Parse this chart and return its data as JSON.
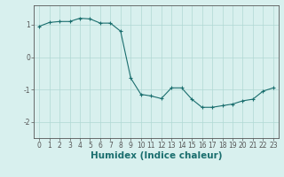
{
  "x": [
    0,
    1,
    2,
    3,
    4,
    5,
    6,
    7,
    8,
    9,
    10,
    11,
    12,
    13,
    14,
    15,
    16,
    17,
    18,
    19,
    20,
    21,
    22,
    23
  ],
  "y": [
    0.95,
    1.07,
    1.1,
    1.1,
    1.2,
    1.18,
    1.05,
    1.05,
    0.8,
    -0.65,
    -1.15,
    -1.2,
    -1.28,
    -0.95,
    -0.95,
    -1.3,
    -1.55,
    -1.55,
    -1.5,
    -1.45,
    -1.35,
    -1.3,
    -1.05,
    -0.95
  ],
  "xlabel": "Humidex (Indice chaleur)",
  "ylim": [
    -2.5,
    1.6
  ],
  "xlim": [
    -0.5,
    23.5
  ],
  "yticks": [
    -2,
    -1,
    0,
    1
  ],
  "xticks": [
    0,
    1,
    2,
    3,
    4,
    5,
    6,
    7,
    8,
    9,
    10,
    11,
    12,
    13,
    14,
    15,
    16,
    17,
    18,
    19,
    20,
    21,
    22,
    23
  ],
  "line_color": "#1a6e6e",
  "marker": "+",
  "bg_color": "#d8f0ee",
  "grid_color": "#b0d8d4",
  "axis_color": "#555555",
  "tick_label_fontsize": 5.5,
  "xlabel_fontsize": 7.5
}
